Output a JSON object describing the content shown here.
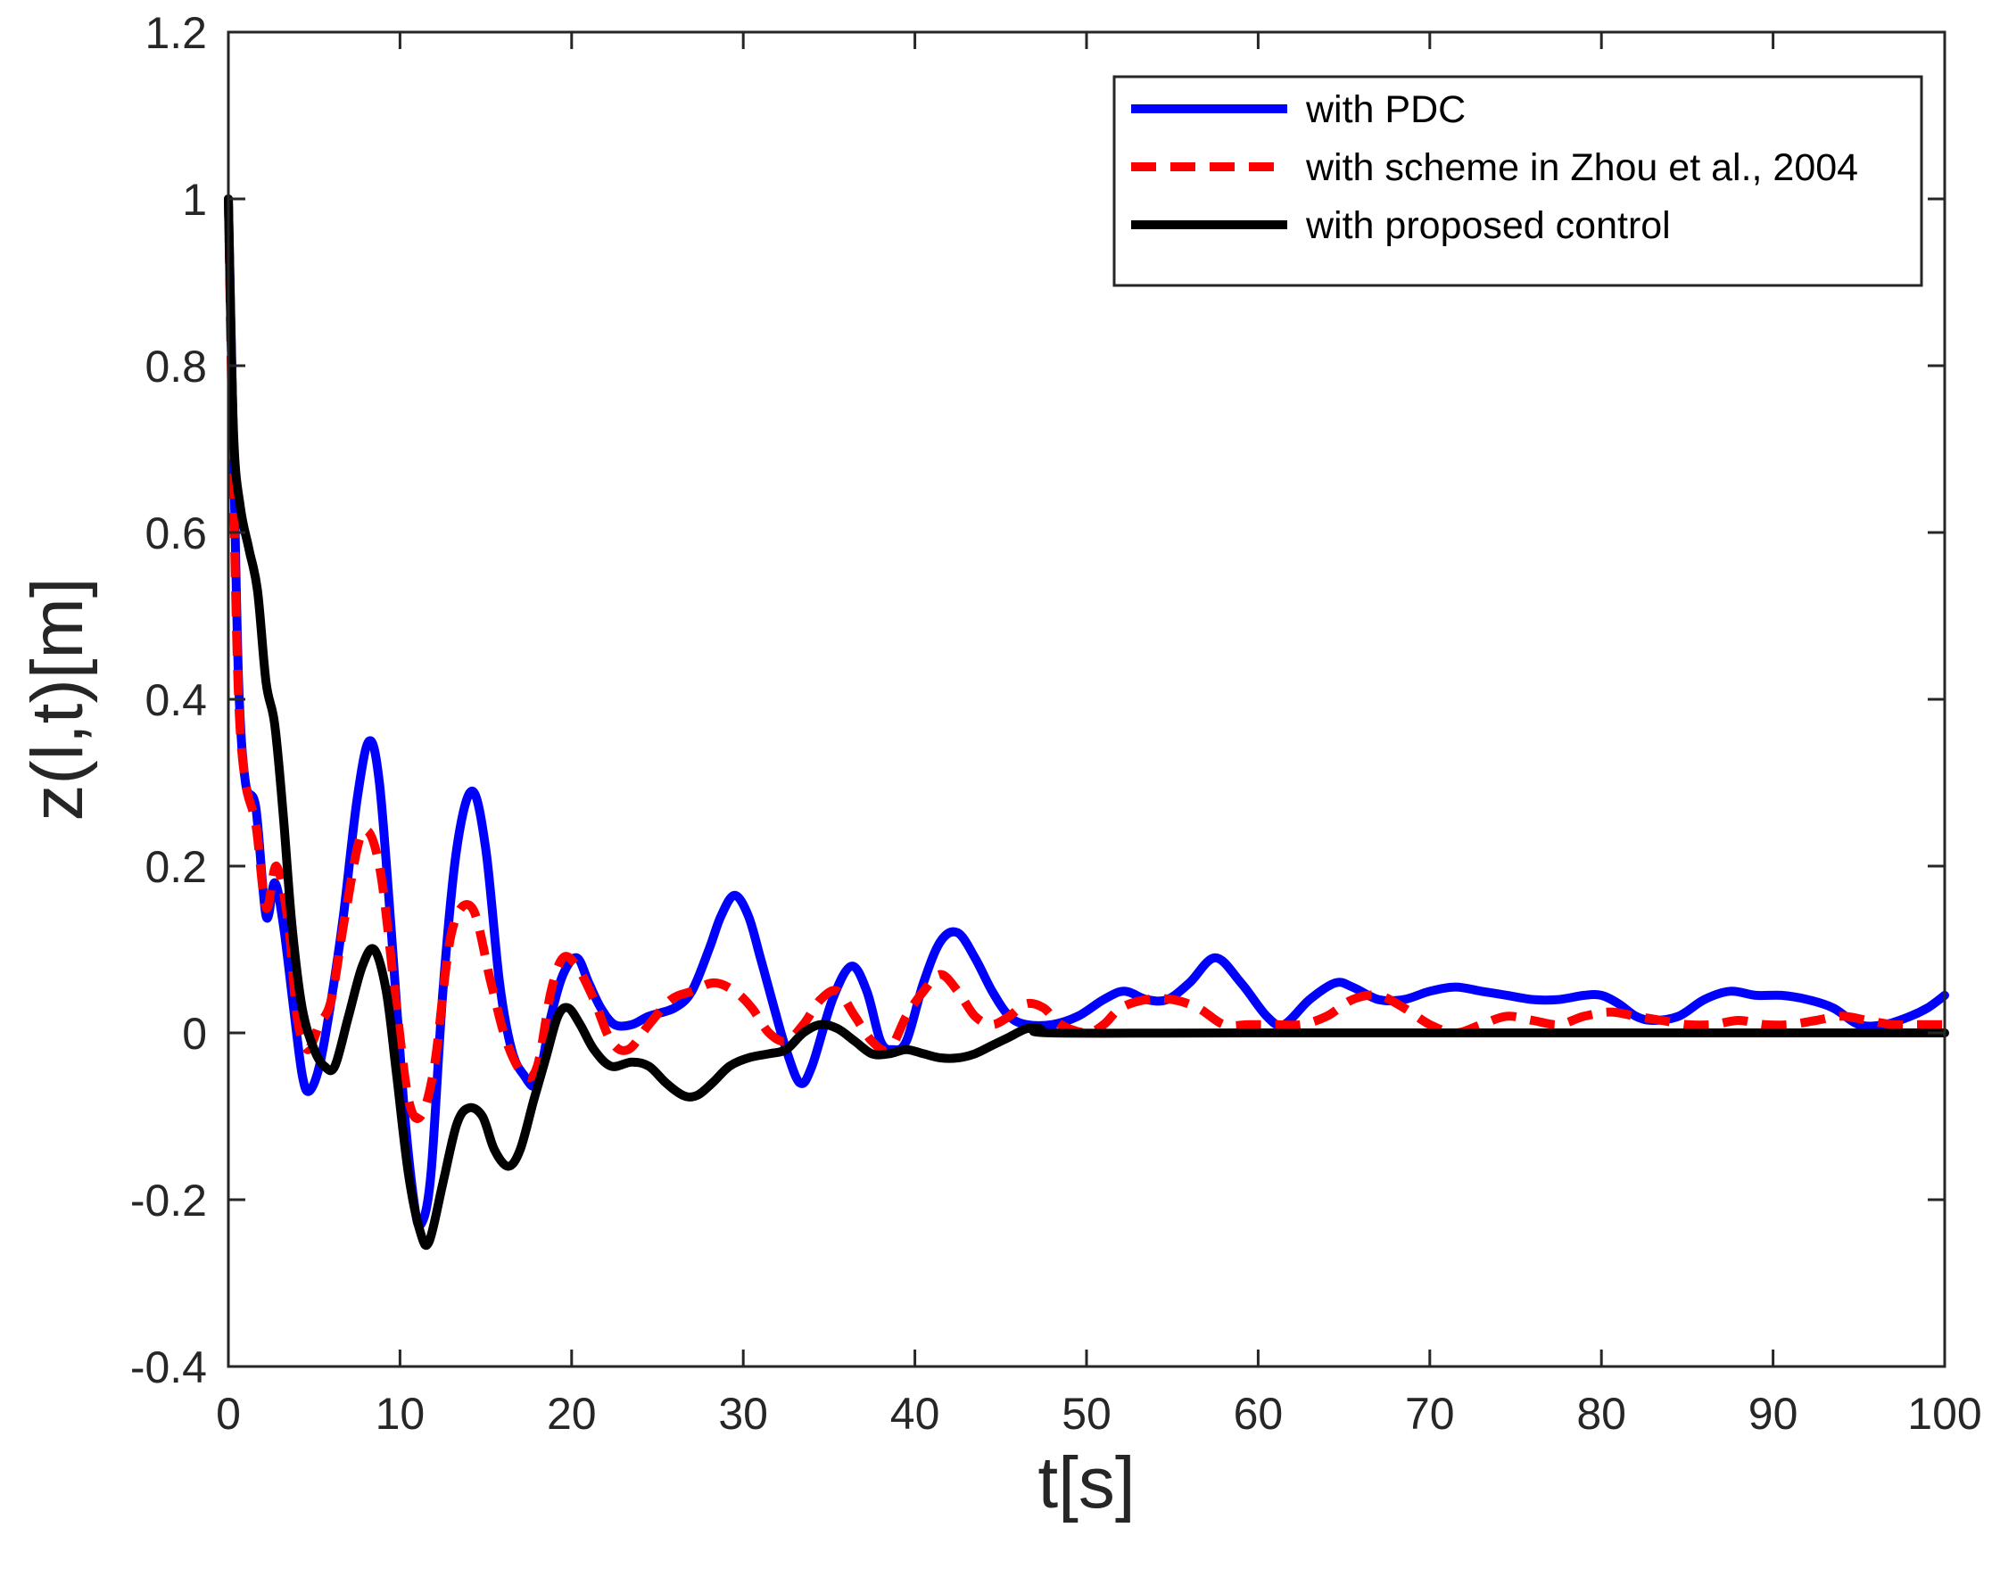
{
  "chart_data": {
    "type": "line",
    "title": "",
    "xlabel": "t[s]",
    "ylabel": "z(l,t)[m]",
    "xlim": [
      0,
      100
    ],
    "ylim": [
      -0.4,
      1.2
    ],
    "xticks": [
      0,
      10,
      20,
      30,
      40,
      50,
      60,
      70,
      80,
      90,
      100
    ],
    "xtick_labels": [
      "0",
      "10",
      "20",
      "30",
      "40",
      "50",
      "60",
      "70",
      "80",
      "90",
      "100"
    ],
    "yticks": [
      -0.4,
      -0.2,
      0,
      0.2,
      0.4,
      0.6,
      0.8,
      1,
      1.2
    ],
    "ytick_labels": [
      "-0.4",
      "-0.2",
      "0",
      "0.2",
      "0.4",
      "0.6",
      "0.8",
      "1",
      "1.2"
    ],
    "grid": false,
    "legend_position": "top-right",
    "series": [
      {
        "name": "with PDC",
        "color": "#0000ff",
        "style": "solid",
        "points": [
          [
            0,
            1.0
          ],
          [
            0.3,
            0.7
          ],
          [
            0.6,
            0.42
          ],
          [
            1,
            0.3
          ],
          [
            1.6,
            0.27
          ],
          [
            2.2,
            0.14
          ],
          [
            2.7,
            0.18
          ],
          [
            3.2,
            0.13
          ],
          [
            3.8,
            0.03
          ],
          [
            4.3,
            -0.05
          ],
          [
            4.7,
            -0.07
          ],
          [
            5.3,
            -0.04
          ],
          [
            6,
            0.04
          ],
          [
            6.7,
            0.14
          ],
          [
            7.5,
            0.28
          ],
          [
            8.2,
            0.35
          ],
          [
            8.8,
            0.3
          ],
          [
            9.5,
            0.12
          ],
          [
            10.2,
            -0.08
          ],
          [
            10.8,
            -0.2
          ],
          [
            11.2,
            -0.23
          ],
          [
            11.8,
            -0.17
          ],
          [
            12.5,
            0.05
          ],
          [
            13.3,
            0.22
          ],
          [
            14.2,
            0.29
          ],
          [
            15,
            0.22
          ],
          [
            15.8,
            0.06
          ],
          [
            16.5,
            -0.02
          ],
          [
            17.2,
            -0.05
          ],
          [
            18,
            -0.06
          ],
          [
            18.8,
            0.02
          ],
          [
            19.5,
            0.07
          ],
          [
            20.3,
            0.09
          ],
          [
            21,
            0.06
          ],
          [
            21.7,
            0.03
          ],
          [
            22.5,
            0.01
          ],
          [
            23.5,
            0.01
          ],
          [
            24.5,
            0.02
          ],
          [
            26,
            0.03
          ],
          [
            27,
            0.05
          ],
          [
            28,
            0.1
          ],
          [
            28.7,
            0.14
          ],
          [
            29.5,
            0.165
          ],
          [
            30.3,
            0.14
          ],
          [
            31,
            0.09
          ],
          [
            31.8,
            0.03
          ],
          [
            32.5,
            -0.02
          ],
          [
            33.3,
            -0.06
          ],
          [
            34,
            -0.04
          ],
          [
            35.2,
            0.04
          ],
          [
            36.3,
            0.08
          ],
          [
            37.2,
            0.05
          ],
          [
            38,
            -0.01
          ],
          [
            38.7,
            -0.02
          ],
          [
            39.5,
            -0.01
          ],
          [
            40.5,
            0.06
          ],
          [
            41.5,
            0.11
          ],
          [
            42.5,
            0.12
          ],
          [
            43.5,
            0.09
          ],
          [
            44.5,
            0.05
          ],
          [
            45.5,
            0.02
          ],
          [
            46.5,
            0.01
          ],
          [
            48,
            0.01
          ],
          [
            49.5,
            0.02
          ],
          [
            51,
            0.04
          ],
          [
            52.2,
            0.05
          ],
          [
            53.5,
            0.04
          ],
          [
            54.7,
            0.04
          ],
          [
            56,
            0.06
          ],
          [
            57.5,
            0.09
          ],
          [
            59,
            0.06
          ],
          [
            60.5,
            0.02
          ],
          [
            61.5,
            0.01
          ],
          [
            63,
            0.04
          ],
          [
            64.5,
            0.06
          ],
          [
            65.5,
            0.055
          ],
          [
            67,
            0.04
          ],
          [
            68.5,
            0.04
          ],
          [
            70,
            0.05
          ],
          [
            71.5,
            0.055
          ],
          [
            73,
            0.05
          ],
          [
            74.5,
            0.045
          ],
          [
            76,
            0.04
          ],
          [
            77.5,
            0.04
          ],
          [
            79,
            0.045
          ],
          [
            80,
            0.045
          ],
          [
            81,
            0.035
          ],
          [
            82,
            0.02
          ],
          [
            83,
            0.015
          ],
          [
            84.5,
            0.02
          ],
          [
            86,
            0.04
          ],
          [
            87.5,
            0.05
          ],
          [
            89,
            0.045
          ],
          [
            90.5,
            0.045
          ],
          [
            92,
            0.04
          ],
          [
            93.5,
            0.03
          ],
          [
            95,
            0.01
          ],
          [
            96.5,
            0.01
          ],
          [
            98,
            0.02
          ],
          [
            99,
            0.03
          ],
          [
            100,
            0.045
          ]
        ]
      },
      {
        "name": "with scheme in Zhou et al., 2004",
        "color": "#ff0000",
        "style": "dashed",
        "points": [
          [
            0,
            1.0
          ],
          [
            0.3,
            0.65
          ],
          [
            0.6,
            0.4
          ],
          [
            1,
            0.3
          ],
          [
            1.6,
            0.25
          ],
          [
            2.2,
            0.15
          ],
          [
            2.8,
            0.2
          ],
          [
            3.5,
            0.13
          ],
          [
            4,
            0.02
          ],
          [
            4.6,
            -0.02
          ],
          [
            5.3,
            0.01
          ],
          [
            6,
            0.04
          ],
          [
            6.8,
            0.14
          ],
          [
            7.8,
            0.24
          ],
          [
            8.8,
            0.2
          ],
          [
            9.8,
            0.03
          ],
          [
            10.5,
            -0.08
          ],
          [
            11.2,
            -0.1
          ],
          [
            12,
            -0.04
          ],
          [
            13,
            0.12
          ],
          [
            14.2,
            0.15
          ],
          [
            15.3,
            0.06
          ],
          [
            16.2,
            -0.01
          ],
          [
            17.2,
            -0.05
          ],
          [
            18,
            -0.04
          ],
          [
            18.8,
            0.05
          ],
          [
            19.5,
            0.09
          ],
          [
            20.3,
            0.08
          ],
          [
            21.3,
            0.04
          ],
          [
            22.3,
            -0.01
          ],
          [
            23.3,
            -0.02
          ],
          [
            24.5,
            0.01
          ],
          [
            25.8,
            0.04
          ],
          [
            27,
            0.05
          ],
          [
            28.3,
            0.06
          ],
          [
            29.5,
            0.05
          ],
          [
            30.5,
            0.03
          ],
          [
            31.5,
            0.0
          ],
          [
            32.5,
            -0.01
          ],
          [
            33.5,
            0.01
          ],
          [
            34.5,
            0.04
          ],
          [
            35.5,
            0.05
          ],
          [
            36.5,
            0.02
          ],
          [
            37.5,
            -0.01
          ],
          [
            38.5,
            -0.02
          ],
          [
            39.5,
            0.02
          ],
          [
            40.5,
            0.05
          ],
          [
            41.5,
            0.07
          ],
          [
            42.5,
            0.05
          ],
          [
            43.5,
            0.02
          ],
          [
            44.5,
            0.01
          ],
          [
            45.5,
            0.02
          ],
          [
            46.5,
            0.035
          ],
          [
            47.5,
            0.03
          ],
          [
            48.5,
            0.01
          ],
          [
            50,
            0.0
          ],
          [
            51,
            0.01
          ],
          [
            52,
            0.03
          ],
          [
            53.5,
            0.04
          ],
          [
            55,
            0.04
          ],
          [
            56.5,
            0.03
          ],
          [
            58,
            0.01
          ],
          [
            59.5,
            0.01
          ],
          [
            61,
            0.01
          ],
          [
            62.5,
            0.01
          ],
          [
            64,
            0.02
          ],
          [
            65.5,
            0.04
          ],
          [
            67,
            0.045
          ],
          [
            68.5,
            0.03
          ],
          [
            70,
            0.01
          ],
          [
            71.5,
            0.0
          ],
          [
            73,
            0.01
          ],
          [
            74.5,
            0.02
          ],
          [
            76,
            0.015
          ],
          [
            77.5,
            0.01
          ],
          [
            79,
            0.02
          ],
          [
            80.5,
            0.025
          ],
          [
            82,
            0.02
          ],
          [
            83.5,
            0.015
          ],
          [
            85,
            0.01
          ],
          [
            86.5,
            0.01
          ],
          [
            88,
            0.015
          ],
          [
            89.5,
            0.01
          ],
          [
            91,
            0.01
          ],
          [
            92.5,
            0.015
          ],
          [
            94,
            0.02
          ],
          [
            95.5,
            0.015
          ],
          [
            97,
            0.01
          ],
          [
            98.5,
            0.01
          ],
          [
            100,
            0.01
          ]
        ]
      },
      {
        "name": "with proposed control",
        "color": "#000000",
        "style": "solid",
        "points": [
          [
            0,
            1.0
          ],
          [
            0.3,
            0.72
          ],
          [
            0.7,
            0.63
          ],
          [
            1.2,
            0.58
          ],
          [
            1.7,
            0.53
          ],
          [
            2.2,
            0.42
          ],
          [
            2.7,
            0.37
          ],
          [
            3.2,
            0.26
          ],
          [
            3.7,
            0.13
          ],
          [
            4.3,
            0.03
          ],
          [
            5,
            -0.02
          ],
          [
            5.6,
            -0.04
          ],
          [
            6.2,
            -0.04
          ],
          [
            7,
            0.02
          ],
          [
            7.8,
            0.08
          ],
          [
            8.5,
            0.1
          ],
          [
            9.2,
            0.05
          ],
          [
            9.8,
            -0.05
          ],
          [
            10.5,
            -0.17
          ],
          [
            11.2,
            -0.24
          ],
          [
            11.7,
            -0.25
          ],
          [
            12.5,
            -0.18
          ],
          [
            13.3,
            -0.11
          ],
          [
            14,
            -0.09
          ],
          [
            14.8,
            -0.1
          ],
          [
            15.5,
            -0.14
          ],
          [
            16.3,
            -0.16
          ],
          [
            17,
            -0.14
          ],
          [
            17.8,
            -0.08
          ],
          [
            18.5,
            -0.03
          ],
          [
            19.2,
            0.02
          ],
          [
            19.8,
            0.03
          ],
          [
            20.5,
            0.01
          ],
          [
            21.3,
            -0.02
          ],
          [
            22.3,
            -0.04
          ],
          [
            23.5,
            -0.035
          ],
          [
            24.5,
            -0.04
          ],
          [
            25.5,
            -0.06
          ],
          [
            26.5,
            -0.075
          ],
          [
            27.3,
            -0.075
          ],
          [
            28.2,
            -0.06
          ],
          [
            29.2,
            -0.04
          ],
          [
            30.3,
            -0.03
          ],
          [
            31.5,
            -0.025
          ],
          [
            32.5,
            -0.02
          ],
          [
            33.5,
            0.0
          ],
          [
            34.5,
            0.01
          ],
          [
            35.5,
            0.005
          ],
          [
            36.5,
            -0.01
          ],
          [
            37.5,
            -0.025
          ],
          [
            38.5,
            -0.025
          ],
          [
            39.5,
            -0.02
          ],
          [
            40.5,
            -0.025
          ],
          [
            41.5,
            -0.03
          ],
          [
            42.5,
            -0.03
          ],
          [
            43.5,
            -0.025
          ],
          [
            44.5,
            -0.015
          ],
          [
            45.5,
            -0.005
          ],
          [
            46.5,
            0.005
          ],
          [
            47.3,
            0.005
          ],
          [
            48,
            0.0
          ],
          [
            60,
            0.0
          ],
          [
            80,
            0.0
          ],
          [
            100,
            0.0
          ]
        ]
      }
    ]
  }
}
